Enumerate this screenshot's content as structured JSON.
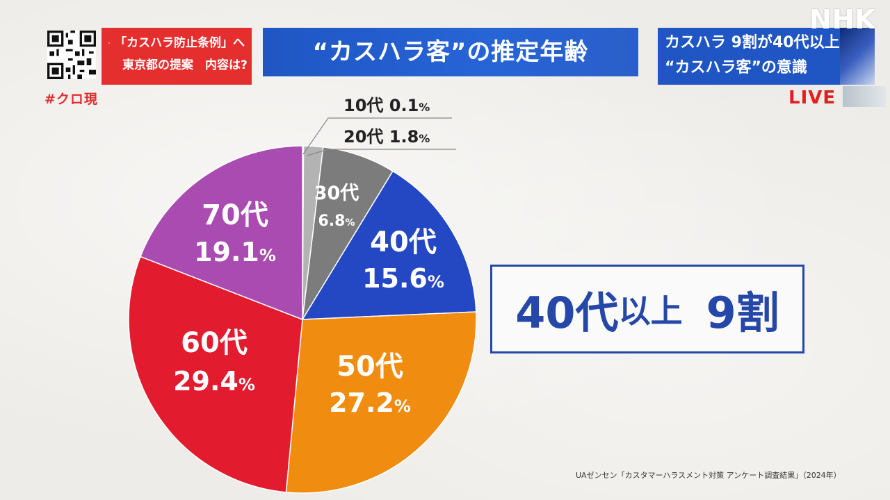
{
  "header": {
    "promo_line1": "「カスハラ防止条例」へ",
    "promo_line2": "東京都の提案　内容は?",
    "hashtag": "#クロ現",
    "title": "“カスハラ客”の推定年齢",
    "headline_line1": "カスハラ 9割が40代以上",
    "headline_line2": "“カスハラ客”の意識",
    "logo": "NHK",
    "live": "LIVE"
  },
  "chart_data": {
    "type": "pie",
    "title": "“カスハラ客”の推定年齢",
    "slices": [
      {
        "label": "10代",
        "value": 0.1,
        "display": "0.1",
        "color": "#e6e6e6"
      },
      {
        "label": "20代",
        "value": 1.8,
        "display": "1.8",
        "color": "#b3b3b3"
      },
      {
        "label": "30代",
        "value": 6.8,
        "display": "6.8",
        "color": "#7c7c7c"
      },
      {
        "label": "40代",
        "value": 15.6,
        "display": "15.6",
        "color": "#2447c4"
      },
      {
        "label": "50代",
        "value": 27.2,
        "display": "27.2",
        "color": "#f08c10"
      },
      {
        "label": "60代",
        "value": 29.4,
        "display": "29.4",
        "color": "#e31b2f"
      },
      {
        "label": "70代",
        "value": 19.1,
        "display": "19.1",
        "color": "#a94bb0"
      }
    ],
    "percent_sign": "%"
  },
  "summary": {
    "part1": "40代",
    "part2": "以上",
    "part3": "9割"
  },
  "source": "UAゼンセン「カスタマーハラスメント対策 アンケート調査結果」（2024年）"
}
